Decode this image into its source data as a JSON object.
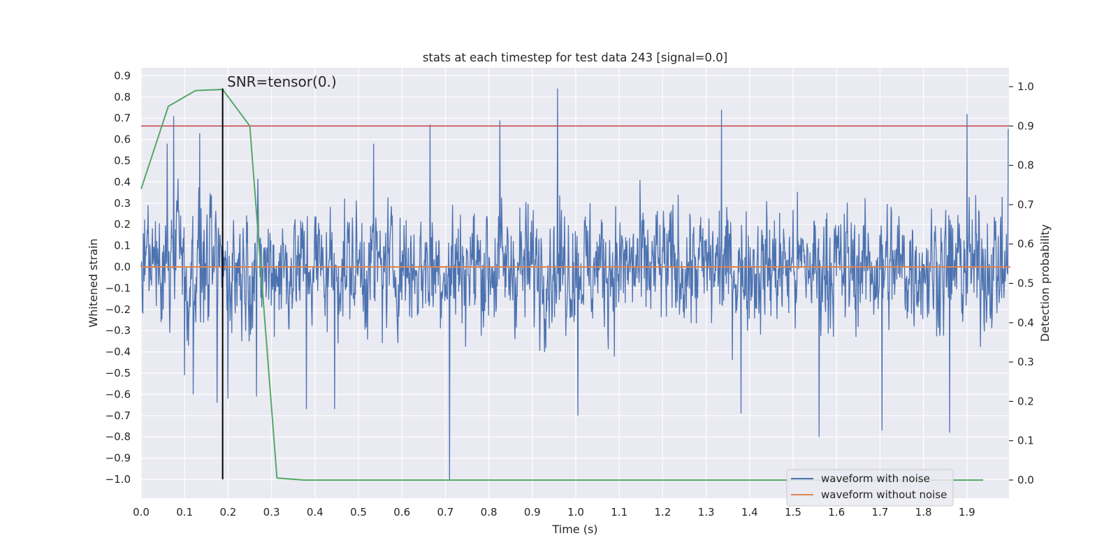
{
  "chart_data": {
    "type": "line",
    "title": "stats at each timestep for test data 243 [signal=0.0]",
    "xlabel": "Time (s)",
    "ylabel_left": "Whitened strain",
    "ylabel_right": "Detection probability",
    "xlim": [
      0.0,
      2.0
    ],
    "ylim_left": [
      -1.09,
      0.94
    ],
    "ylim_right": [
      -0.05,
      1.045
    ],
    "x_ticks": [
      "0.0",
      "0.1",
      "0.2",
      "0.3",
      "0.4",
      "0.5",
      "0.6",
      "0.7",
      "0.8",
      "0.9",
      "1.0",
      "1.1",
      "1.2",
      "1.3",
      "1.4",
      "1.5",
      "1.6",
      "1.7",
      "1.8",
      "1.9"
    ],
    "y_ticks_left": [
      "0.9",
      "0.8",
      "0.7",
      "0.6",
      "0.5",
      "0.4",
      "0.3",
      "0.2",
      "0.1",
      "0.0",
      "−0.1",
      "−0.2",
      "−0.3",
      "−0.4",
      "−0.5",
      "−0.6",
      "−0.7",
      "−0.8",
      "−0.9",
      "−1.0"
    ],
    "y_ticks_right": [
      "1.0",
      "0.9",
      "0.8",
      "0.7",
      "0.6",
      "0.5",
      "0.4",
      "0.3",
      "0.2",
      "0.1",
      "0.0"
    ],
    "series": [
      {
        "name": "waveform with noise",
        "axis": "left",
        "color": "#4c72b0",
        "generated": "gaussian-like noise, std ~0.2, range -1.0 to 0.85",
        "spikes": [
          {
            "x": 0.06,
            "y": 0.58
          },
          {
            "x": 0.075,
            "y": 0.71
          },
          {
            "x": 0.1,
            "y": -0.51
          },
          {
            "x": 0.12,
            "y": -0.6
          },
          {
            "x": 0.135,
            "y": 0.63
          },
          {
            "x": 0.175,
            "y": -0.64
          },
          {
            "x": 0.2,
            "y": -0.62
          },
          {
            "x": 0.265,
            "y": -0.61
          },
          {
            "x": 0.38,
            "y": -0.67
          },
          {
            "x": 0.445,
            "y": -0.67
          },
          {
            "x": 0.535,
            "y": 0.58
          },
          {
            "x": 0.665,
            "y": 0.67
          },
          {
            "x": 0.71,
            "y": -1.0
          },
          {
            "x": 0.825,
            "y": 0.69
          },
          {
            "x": 0.958,
            "y": 0.84
          },
          {
            "x": 1.005,
            "y": -0.7
          },
          {
            "x": 1.335,
            "y": 0.74
          },
          {
            "x": 1.38,
            "y": -0.69
          },
          {
            "x": 1.56,
            "y": -0.8
          },
          {
            "x": 1.705,
            "y": -0.77
          },
          {
            "x": 1.86,
            "y": -0.78
          },
          {
            "x": 1.9,
            "y": 0.72
          },
          {
            "x": 1.995,
            "y": 0.65
          }
        ]
      },
      {
        "name": "waveform without noise",
        "axis": "left",
        "color": "#dd8452",
        "x": [
          0.0,
          2.0
        ],
        "values": [
          0.0,
          0.0
        ]
      },
      {
        "name": "detection probability",
        "axis": "right",
        "color": "#55a868",
        "x": [
          0.0,
          0.0625,
          0.125,
          0.1875,
          0.25,
          0.3125,
          0.375,
          0.4375,
          0.5,
          0.5625,
          0.625,
          0.6875,
          0.75,
          0.8125,
          0.875,
          0.9375,
          1.0,
          1.0625,
          1.125,
          1.1875,
          1.25,
          1.3125,
          1.375,
          1.4375,
          1.5,
          1.5625,
          1.625,
          1.6875,
          1.75,
          1.8125,
          1.875,
          1.9375
        ],
        "values": [
          0.74,
          0.95,
          0.99,
          0.993,
          0.9,
          0.005,
          0.0,
          0.0,
          0.0,
          0.0,
          0.0,
          0.0,
          0.0,
          0.0,
          0.0,
          0.0,
          0.0,
          0.0,
          0.0,
          0.0,
          0.0,
          0.0,
          0.0,
          0.0,
          0.0,
          0.0,
          0.0,
          0.0,
          0.0,
          0.0,
          0.0,
          0.0
        ]
      }
    ],
    "threshold": {
      "axis": "right",
      "value": 0.9,
      "color": "#c44e52"
    },
    "marker": {
      "x": 0.1875,
      "y_from": -1.0,
      "y_to": 0.84,
      "color": "#000000"
    },
    "annotation": {
      "text": "SNR=tensor(0.)",
      "x": 0.2,
      "y": 0.86
    },
    "legend": {
      "position": "lower-right",
      "entries": [
        {
          "label": "waveform with noise",
          "color": "#4c72b0"
        },
        {
          "label": "waveform without noise",
          "color": "#dd8452"
        }
      ]
    },
    "grid": true,
    "background": "#eaeaf2"
  }
}
